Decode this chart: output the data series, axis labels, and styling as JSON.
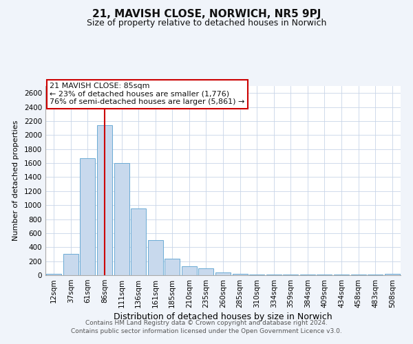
{
  "title": "21, MAVISH CLOSE, NORWICH, NR5 9PJ",
  "subtitle": "Size of property relative to detached houses in Norwich",
  "xlabel": "Distribution of detached houses by size in Norwich",
  "ylabel": "Number of detached properties",
  "bar_labels": [
    "12sqm",
    "37sqm",
    "61sqm",
    "86sqm",
    "111sqm",
    "136sqm",
    "161sqm",
    "185sqm",
    "210sqm",
    "235sqm",
    "260sqm",
    "285sqm",
    "310sqm",
    "334sqm",
    "359sqm",
    "384sqm",
    "409sqm",
    "434sqm",
    "458sqm",
    "483sqm",
    "508sqm"
  ],
  "bar_values": [
    15,
    300,
    1670,
    2140,
    1600,
    950,
    505,
    240,
    125,
    95,
    40,
    15,
    10,
    5,
    5,
    5,
    5,
    5,
    5,
    5,
    20
  ],
  "bar_color": "#c8d9ed",
  "bar_edge_color": "#6aaad4",
  "vline_x_index": 3,
  "vline_color": "#cc0000",
  "ylim": [
    0,
    2700
  ],
  "yticks": [
    0,
    200,
    400,
    600,
    800,
    1000,
    1200,
    1400,
    1600,
    1800,
    2000,
    2200,
    2400,
    2600
  ],
  "annotation_title": "21 MAVISH CLOSE: 85sqm",
  "annotation_line1": "← 23% of detached houses are smaller (1,776)",
  "annotation_line2": "76% of semi-detached houses are larger (5,861) →",
  "annotation_box_color": "#cc0000",
  "footer1": "Contains HM Land Registry data © Crown copyright and database right 2024.",
  "footer2": "Contains public sector information licensed under the Open Government Licence v3.0.",
  "bg_color": "#f0f4fa",
  "plot_bg_color": "#ffffff",
  "grid_color": "#c8d4e8",
  "title_fontsize": 11,
  "subtitle_fontsize": 9,
  "xlabel_fontsize": 9,
  "ylabel_fontsize": 8,
  "tick_fontsize": 7.5,
  "footer_fontsize": 6.5
}
